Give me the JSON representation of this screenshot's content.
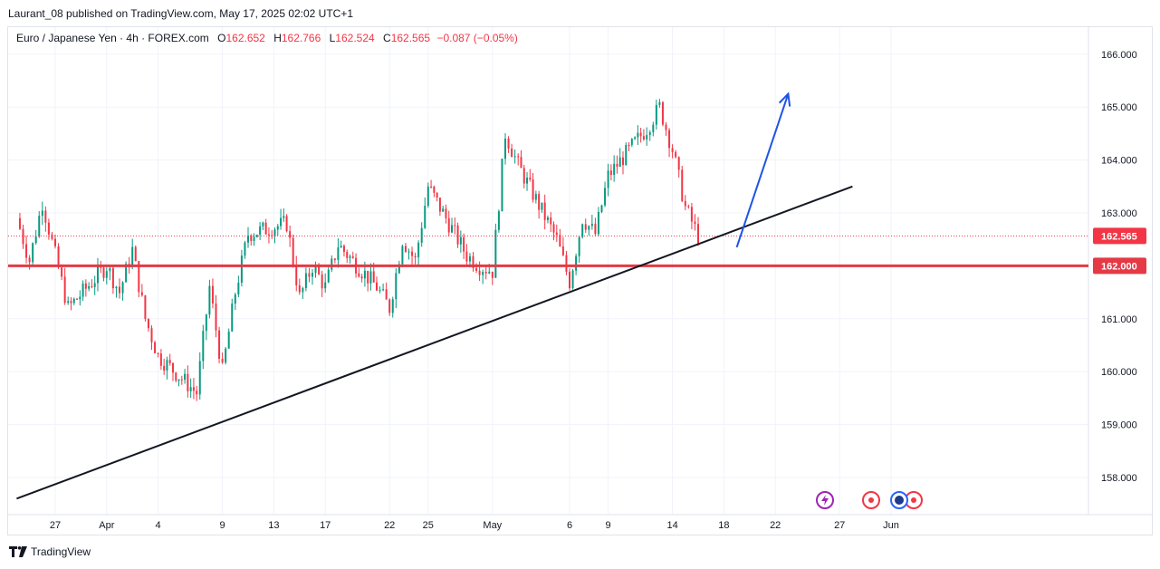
{
  "header": {
    "published": "Laurant_08 published on TradingView.com, May 17, 2025 02:02 UTC+1"
  },
  "legend": {
    "symbol": "Euro / Japanese Yen · 4h · FOREX.com",
    "open_label": "O",
    "open": "162.652",
    "high_label": "H",
    "high": "162.766",
    "low_label": "L",
    "low": "162.524",
    "close_label": "C",
    "close": "162.565",
    "change": "−0.087 (−0.05%)"
  },
  "footer": {
    "brand": "TradingView"
  },
  "colors": {
    "up": "#089981",
    "down": "#f23645",
    "trendline": "#131722",
    "arrow": "#1e53e5",
    "support": "#e53945",
    "grid": "#f0f3fa"
  },
  "icons": [
    "tradingview-logo-icon",
    "lightning-event-icon",
    "economic-event-icon",
    "flag-event-icon"
  ],
  "chart_data": {
    "type": "candlestick",
    "symbol": "EURJPY",
    "timeframe": "4h",
    "y_ticks": [
      "158.000",
      "159.000",
      "160.000",
      "161.000",
      "162.000",
      "163.000",
      "164.000",
      "165.000",
      "166.000"
    ],
    "ylim": [
      157.55,
      166.35
    ],
    "x_ticks": [
      "27",
      "Apr",
      "4",
      "9",
      "13",
      "17",
      "22",
      "25",
      "May",
      "6",
      "9",
      "14",
      "18",
      "22",
      "27",
      "Jun"
    ],
    "last_price": "162.565",
    "support_level": {
      "value": 162.0,
      "label": "162.000"
    },
    "anchors": [
      [
        "Mar 24",
        162.9
      ],
      [
        "Mar 25",
        162.1
      ],
      [
        "Mar 26",
        163.2
      ],
      [
        "Mar 27",
        162.2
      ],
      [
        "Mar 28",
        161.2
      ],
      [
        "Mar 31",
        162.0
      ],
      [
        "Apr 1",
        161.5
      ],
      [
        "Apr 2",
        162.3
      ],
      [
        "Apr 3",
        161.0
      ],
      [
        "Apr 4",
        160.3
      ],
      [
        "Apr 7",
        159.6
      ],
      [
        "Apr 8",
        161.6
      ],
      [
        "Apr 9",
        160.0
      ],
      [
        "Apr 10",
        161.5
      ],
      [
        "Apr 11",
        162.6
      ],
      [
        "Apr 14",
        162.8
      ],
      [
        "Apr 15",
        161.4
      ],
      [
        "Apr 16",
        162.0
      ],
      [
        "Apr 17",
        161.6
      ],
      [
        "Apr 18",
        162.4
      ],
      [
        "Apr 21",
        161.6
      ],
      [
        "Apr 22",
        161.2
      ],
      [
        "Apr 23",
        162.5
      ],
      [
        "Apr 24",
        162.1
      ],
      [
        "Apr 25",
        163.5
      ],
      [
        "Apr 28",
        162.2
      ],
      [
        "Apr 29",
        162.0
      ],
      [
        "Apr 30",
        161.9
      ],
      [
        "May 1",
        164.5
      ],
      [
        "May 2",
        163.9
      ],
      [
        "May 5",
        162.5
      ],
      [
        "May 6",
        161.7
      ],
      [
        "May 7",
        162.9
      ],
      [
        "May 8",
        162.6
      ],
      [
        "May 9",
        163.7
      ],
      [
        "May 12",
        164.6
      ],
      [
        "May 13",
        165.0
      ],
      [
        "May 14",
        164.2
      ],
      [
        "May 15",
        163.1
      ],
      [
        "May 16",
        162.565
      ]
    ],
    "trendline": {
      "from": [
        "Mar 24",
        157.6
      ],
      "to": [
        "May 28",
        163.5
      ]
    },
    "arrow": {
      "from": [
        "May 19",
        162.35
      ],
      "to": [
        "May 23",
        165.25
      ]
    }
  }
}
